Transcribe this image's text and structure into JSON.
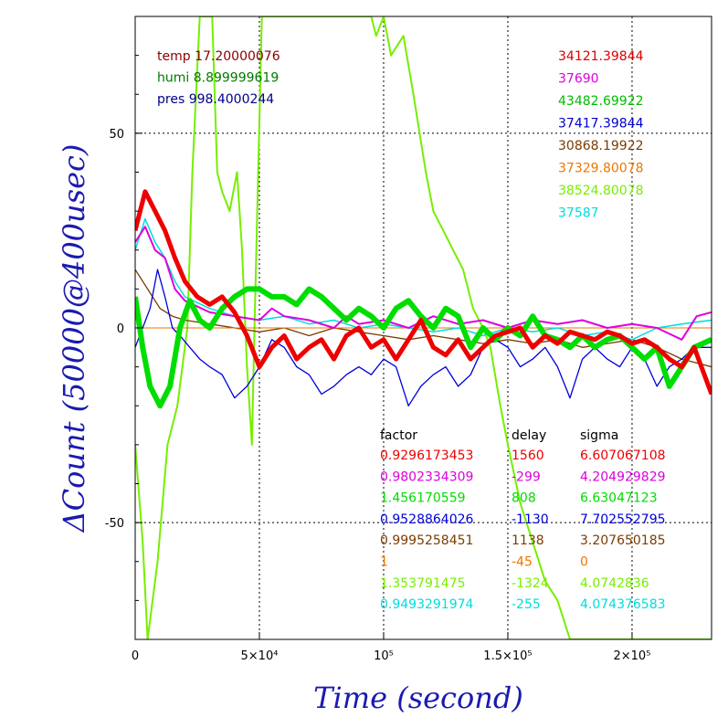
{
  "chart_data": {
    "type": "line",
    "xlabel": "Time (second)",
    "ylabel": "ΔCount (50000@400usec)",
    "xlim": [
      0,
      232000
    ],
    "ylim": [
      -80,
      80
    ],
    "xticks": [
      {
        "v": 0,
        "label": "0"
      },
      {
        "v": 50000,
        "label": "5×10⁴"
      },
      {
        "v": 100000,
        "label": "10⁵"
      },
      {
        "v": 150000,
        "label": "1.5×10⁵"
      },
      {
        "v": 200000,
        "label": "2×10⁵"
      }
    ],
    "yticks": [
      {
        "v": 50,
        "label": "50"
      },
      {
        "v": 0,
        "label": "0"
      },
      {
        "v": -50,
        "label": "-50"
      }
    ],
    "grid": "dotted",
    "environment": [
      {
        "text": "temp 17.20000076",
        "color": "#8b0000"
      },
      {
        "text": "humi 8.899999619",
        "color": "#007a00"
      },
      {
        "text": "pres 998.4000244",
        "color": "#00008b"
      }
    ],
    "means": [
      {
        "text": "34121.39844",
        "color": "#dd0000"
      },
      {
        "text": "37690",
        "color": "#dd00dd"
      },
      {
        "text": "43482.69922",
        "color": "#00bb00"
      },
      {
        "text": "37417.39844",
        "color": "#0000cc"
      },
      {
        "text": "30868.19922",
        "color": "#7a3d00"
      },
      {
        "text": "37329.80078",
        "color": "#ee7700"
      },
      {
        "text": "38524.80078",
        "color": "#77ee00"
      },
      {
        "text": "37587",
        "color": "#00dddd"
      }
    ],
    "table_headers": [
      "factor",
      "delay",
      "sigma"
    ],
    "series": [
      {
        "color": "#ee0000",
        "factor": "0.9296173453",
        "delay": "1560",
        "sigma": "6.607067108",
        "points": [
          [
            0,
            25
          ],
          [
            4000,
            35
          ],
          [
            8000,
            30
          ],
          [
            12000,
            25
          ],
          [
            16000,
            18
          ],
          [
            20000,
            12
          ],
          [
            25000,
            8
          ],
          [
            30000,
            6
          ],
          [
            35000,
            8
          ],
          [
            40000,
            4
          ],
          [
            45000,
            -2
          ],
          [
            50000,
            -10
          ],
          [
            55000,
            -5
          ],
          [
            60000,
            -2
          ],
          [
            65000,
            -8
          ],
          [
            70000,
            -5
          ],
          [
            75000,
            -3
          ],
          [
            80000,
            -8
          ],
          [
            85000,
            -2
          ],
          [
            90000,
            0
          ],
          [
            95000,
            -5
          ],
          [
            100000,
            -3
          ],
          [
            105000,
            -8
          ],
          [
            110000,
            -3
          ],
          [
            115000,
            2
          ],
          [
            120000,
            -5
          ],
          [
            125000,
            -7
          ],
          [
            130000,
            -3
          ],
          [
            135000,
            -8
          ],
          [
            140000,
            -5
          ],
          [
            145000,
            -2
          ],
          [
            150000,
            -1
          ],
          [
            155000,
            0
          ],
          [
            160000,
            -5
          ],
          [
            165000,
            -2
          ],
          [
            170000,
            -4
          ],
          [
            175000,
            -1
          ],
          [
            180000,
            -2
          ],
          [
            185000,
            -3
          ],
          [
            190000,
            -1
          ],
          [
            195000,
            -2
          ],
          [
            200000,
            -4
          ],
          [
            205000,
            -3
          ],
          [
            210000,
            -5
          ],
          [
            215000,
            -8
          ],
          [
            220000,
            -10
          ],
          [
            225000,
            -5
          ],
          [
            232000,
            -17
          ]
        ]
      },
      {
        "color": "#dd00dd",
        "factor": "0.9802334309",
        "delay": "-299",
        "sigma": "4.204929829",
        "points": [
          [
            0,
            22
          ],
          [
            4000,
            26
          ],
          [
            8000,
            20
          ],
          [
            12000,
            18
          ],
          [
            16000,
            10
          ],
          [
            20000,
            7
          ],
          [
            30000,
            4
          ],
          [
            40000,
            3
          ],
          [
            50000,
            2
          ],
          [
            55000,
            5
          ],
          [
            60000,
            3
          ],
          [
            70000,
            2
          ],
          [
            80000,
            0
          ],
          [
            85000,
            3
          ],
          [
            90000,
            1
          ],
          [
            100000,
            2
          ],
          [
            110000,
            0
          ],
          [
            120000,
            3
          ],
          [
            130000,
            1
          ],
          [
            140000,
            2
          ],
          [
            150000,
            0
          ],
          [
            160000,
            2
          ],
          [
            170000,
            1
          ],
          [
            180000,
            2
          ],
          [
            190000,
            0
          ],
          [
            200000,
            1
          ],
          [
            210000,
            0
          ],
          [
            220000,
            -3
          ],
          [
            226000,
            3
          ],
          [
            232000,
            4
          ]
        ]
      },
      {
        "color": "#00dd00",
        "factor": "1.456170559",
        "delay": "808",
        "sigma": "6.63047123",
        "points": [
          [
            0,
            8
          ],
          [
            3000,
            -5
          ],
          [
            6000,
            -15
          ],
          [
            10000,
            -20
          ],
          [
            14000,
            -15
          ],
          [
            18000,
            0
          ],
          [
            22000,
            7
          ],
          [
            26000,
            2
          ],
          [
            30000,
            0
          ],
          [
            35000,
            5
          ],
          [
            40000,
            8
          ],
          [
            45000,
            10
          ],
          [
            50000,
            10
          ],
          [
            55000,
            8
          ],
          [
            60000,
            8
          ],
          [
            65000,
            6
          ],
          [
            70000,
            10
          ],
          [
            75000,
            8
          ],
          [
            80000,
            5
          ],
          [
            85000,
            2
          ],
          [
            90000,
            5
          ],
          [
            95000,
            3
          ],
          [
            100000,
            0
          ],
          [
            105000,
            5
          ],
          [
            110000,
            7
          ],
          [
            115000,
            3
          ],
          [
            120000,
            0
          ],
          [
            125000,
            5
          ],
          [
            130000,
            3
          ],
          [
            135000,
            -5
          ],
          [
            140000,
            0
          ],
          [
            145000,
            -3
          ],
          [
            150000,
            0
          ],
          [
            155000,
            -2
          ],
          [
            160000,
            3
          ],
          [
            165000,
            -2
          ],
          [
            170000,
            -3
          ],
          [
            175000,
            -5
          ],
          [
            180000,
            -2
          ],
          [
            185000,
            -5
          ],
          [
            190000,
            -3
          ],
          [
            195000,
            -2
          ],
          [
            200000,
            -5
          ],
          [
            205000,
            -8
          ],
          [
            210000,
            -5
          ],
          [
            215000,
            -15
          ],
          [
            220000,
            -10
          ],
          [
            225000,
            -5
          ],
          [
            232000,
            -3
          ]
        ]
      },
      {
        "color": "#0000dd",
        "factor": "0.9528864026",
        "delay": "-1130",
        "sigma": "7.702552795",
        "points": [
          [
            0,
            -5
          ],
          [
            3000,
            0
          ],
          [
            6000,
            5
          ],
          [
            9000,
            15
          ],
          [
            12000,
            8
          ],
          [
            15000,
            0
          ],
          [
            18000,
            -2
          ],
          [
            22000,
            -5
          ],
          [
            26000,
            -8
          ],
          [
            30000,
            -10
          ],
          [
            35000,
            -12
          ],
          [
            40000,
            -18
          ],
          [
            45000,
            -15
          ],
          [
            50000,
            -10
          ],
          [
            55000,
            -3
          ],
          [
            60000,
            -5
          ],
          [
            65000,
            -10
          ],
          [
            70000,
            -12
          ],
          [
            75000,
            -17
          ],
          [
            80000,
            -15
          ],
          [
            85000,
            -12
          ],
          [
            90000,
            -10
          ],
          [
            95000,
            -12
          ],
          [
            100000,
            -8
          ],
          [
            105000,
            -10
          ],
          [
            110000,
            -20
          ],
          [
            115000,
            -15
          ],
          [
            120000,
            -12
          ],
          [
            125000,
            -10
          ],
          [
            130000,
            -15
          ],
          [
            135000,
            -12
          ],
          [
            140000,
            -5
          ],
          [
            145000,
            -3
          ],
          [
            150000,
            -5
          ],
          [
            155000,
            -10
          ],
          [
            160000,
            -8
          ],
          [
            165000,
            -5
          ],
          [
            170000,
            -10
          ],
          [
            175000,
            -18
          ],
          [
            180000,
            -8
          ],
          [
            185000,
            -5
          ],
          [
            190000,
            -8
          ],
          [
            195000,
            -10
          ],
          [
            200000,
            -5
          ],
          [
            205000,
            -8
          ],
          [
            210000,
            -15
          ],
          [
            215000,
            -10
          ],
          [
            220000,
            -8
          ],
          [
            225000,
            -5
          ],
          [
            232000,
            -5
          ]
        ]
      },
      {
        "color": "#7a3d00",
        "factor": "0.9995258451",
        "delay": "1138",
        "sigma": "3.207650185",
        "points": [
          [
            0,
            15
          ],
          [
            5000,
            10
          ],
          [
            10000,
            5
          ],
          [
            15000,
            3
          ],
          [
            20000,
            2
          ],
          [
            30000,
            1
          ],
          [
            40000,
            0
          ],
          [
            50000,
            -1
          ],
          [
            60000,
            0
          ],
          [
            70000,
            -2
          ],
          [
            80000,
            0
          ],
          [
            90000,
            -1
          ],
          [
            100000,
            -2
          ],
          [
            110000,
            -3
          ],
          [
            120000,
            -2
          ],
          [
            130000,
            -3
          ],
          [
            140000,
            -4
          ],
          [
            150000,
            -3
          ],
          [
            160000,
            -4
          ],
          [
            170000,
            -3
          ],
          [
            180000,
            -5
          ],
          [
            190000,
            -4
          ],
          [
            200000,
            -3
          ],
          [
            210000,
            -5
          ],
          [
            220000,
            -8
          ],
          [
            232000,
            -10
          ]
        ]
      },
      {
        "color": "#ee7700",
        "factor": "1",
        "delay": "-45",
        "sigma": "0",
        "points": [
          [
            0,
            0
          ],
          [
            232000,
            0
          ]
        ]
      },
      {
        "color": "#77ee00",
        "factor": "1.353791475",
        "delay": "-1324",
        "sigma": "4.0742836",
        "points": [
          [
            0,
            -30
          ],
          [
            3000,
            -55
          ],
          [
            5000,
            -80
          ],
          [
            9000,
            -60
          ],
          [
            13000,
            -30
          ],
          [
            17000,
            -20
          ],
          [
            21000,
            0
          ],
          [
            23000,
            40
          ],
          [
            26000,
            80
          ],
          [
            31000,
            80
          ],
          [
            33000,
            40
          ],
          [
            35000,
            35
          ],
          [
            38000,
            30
          ],
          [
            41000,
            40
          ],
          [
            43000,
            20
          ],
          [
            45000,
            -10
          ],
          [
            47000,
            -30
          ],
          [
            48000,
            0
          ],
          [
            51000,
            80
          ],
          [
            95000,
            80
          ],
          [
            97000,
            75
          ],
          [
            100000,
            80
          ],
          [
            103000,
            70
          ],
          [
            108000,
            75
          ],
          [
            112000,
            60
          ],
          [
            117000,
            40
          ],
          [
            120000,
            30
          ],
          [
            124000,
            25
          ],
          [
            128000,
            20
          ],
          [
            132000,
            15
          ],
          [
            136000,
            5
          ],
          [
            140000,
            0
          ],
          [
            143000,
            -5
          ],
          [
            147000,
            -20
          ],
          [
            150000,
            -30
          ],
          [
            155000,
            -45
          ],
          [
            160000,
            -55
          ],
          [
            165000,
            -65
          ],
          [
            170000,
            -70
          ],
          [
            175000,
            -80
          ],
          [
            232000,
            -80
          ]
        ]
      },
      {
        "color": "#00dddd",
        "factor": "0.9493291974",
        "delay": "-255",
        "sigma": "4.074376583",
        "points": [
          [
            0,
            20
          ],
          [
            4000,
            28
          ],
          [
            8000,
            22
          ],
          [
            12000,
            18
          ],
          [
            16000,
            12
          ],
          [
            20000,
            8
          ],
          [
            30000,
            5
          ],
          [
            40000,
            3
          ],
          [
            50000,
            2
          ],
          [
            60000,
            3
          ],
          [
            70000,
            1
          ],
          [
            80000,
            2
          ],
          [
            90000,
            0
          ],
          [
            100000,
            1
          ],
          [
            110000,
            0
          ],
          [
            120000,
            -1
          ],
          [
            130000,
            0
          ],
          [
            140000,
            -2
          ],
          [
            150000,
            0
          ],
          [
            160000,
            -1
          ],
          [
            170000,
            0
          ],
          [
            180000,
            -2
          ],
          [
            190000,
            -1
          ],
          [
            200000,
            -3
          ],
          [
            210000,
            0
          ],
          [
            220000,
            1
          ],
          [
            232000,
            2
          ]
        ]
      }
    ]
  }
}
